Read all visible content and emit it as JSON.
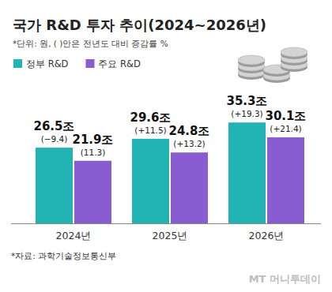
{
  "chart_data": {
    "type": "bar",
    "title": "국가 R&D 투자 추이(2024~2026년)",
    "subtitle": "*단위: 원, ( )안은 전년도 대비 증감률 %",
    "source": "*자료: 과학기술정보통신부",
    "watermark": "MT 머니투데이",
    "categories": [
      "2024년",
      "2025년",
      "2026년"
    ],
    "series": [
      {
        "name": "정부 R&D",
        "color": "#22b4b2",
        "values": [
          26.5,
          29.6,
          35.3
        ],
        "value_labels": [
          "26.5조",
          "29.6조",
          "35.3조"
        ],
        "change_labels": [
          "(−9.4)",
          "(+11.5)",
          "(+19.3)"
        ]
      },
      {
        "name": "주요 R&D",
        "color": "#8a5cd1",
        "values": [
          21.9,
          24.8,
          30.1
        ],
        "value_labels": [
          "21.9조",
          "24.8조",
          "30.1조"
        ],
        "change_labels": [
          "(11.3)",
          "(+13.2)",
          "(+21.4)"
        ]
      }
    ],
    "ylim": [
      0,
      40
    ],
    "tick_labels": "x",
    "data_labels": true,
    "legend": "top-left",
    "grid": false
  }
}
